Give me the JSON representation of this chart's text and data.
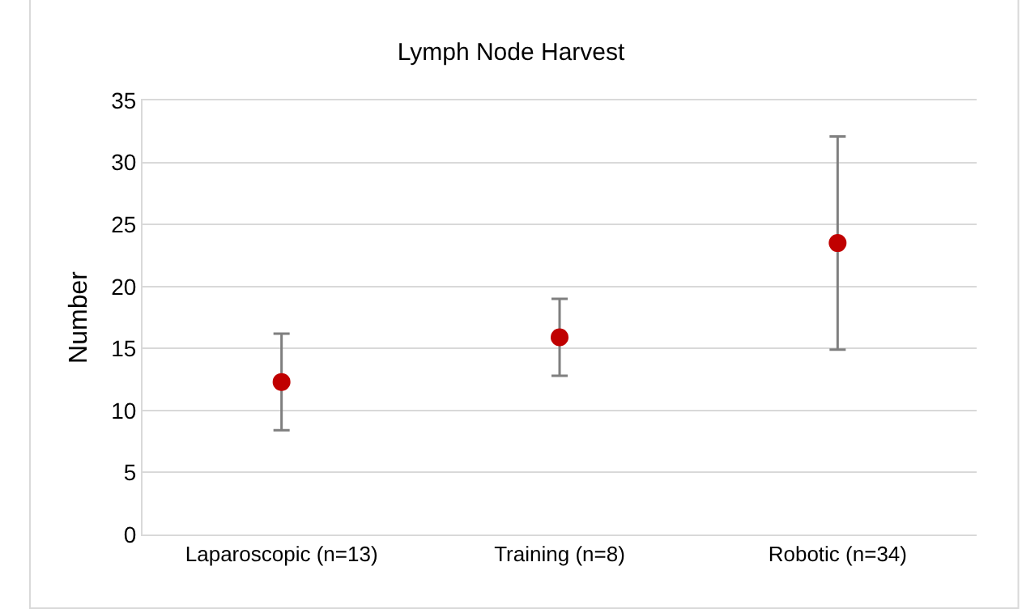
{
  "chart_data": {
    "type": "scatter",
    "title": "Lymph Node Harvest",
    "ylabel": "Number",
    "categories": [
      "Laparoscopic (n=13)",
      "Training (n=8)",
      "Robotic (n=34)"
    ],
    "series": [
      {
        "color": "#c00000",
        "values": [
          12.3,
          15.9,
          23.5
        ],
        "errors": [
          3.9,
          3.1,
          8.6
        ]
      }
    ],
    "ylim": [
      0,
      35
    ],
    "yticks": [
      0,
      5,
      10,
      15,
      20,
      25,
      30,
      35
    ],
    "grid": "y",
    "marker": "circle"
  }
}
